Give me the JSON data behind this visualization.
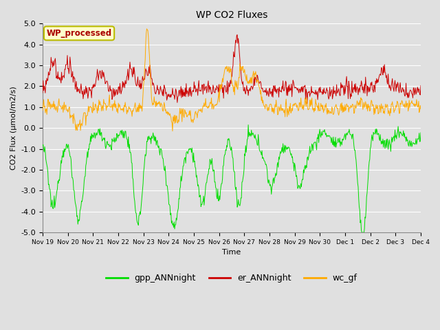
{
  "title": "WP CO2 Fluxes",
  "ylabel": "CO2 Flux (μmol/m2/s)",
  "xlabel": "Time",
  "ylim": [
    -5.0,
    5.0
  ],
  "yticks": [
    -5.0,
    -4.0,
    -3.0,
    -2.0,
    -1.0,
    0.0,
    1.0,
    2.0,
    3.0,
    4.0,
    5.0
  ],
  "bg_color": "#e0e0e0",
  "plot_bg_color": "#e0e0e0",
  "grid_color": "#ffffff",
  "color_gpp": "#00dd00",
  "color_er": "#cc0000",
  "color_wc": "#ffaa00",
  "legend_labels": [
    "gpp_ANNnight",
    "er_ANNnight",
    "wc_gf"
  ],
  "annotation_text": "WP_processed",
  "annotation_color": "#aa0000",
  "annotation_bg": "#ffffcc",
  "annotation_border": "#bbbb00",
  "n_days": 15,
  "points_per_day": 48,
  "tick_labels": [
    "Nov 19",
    "Nov 20",
    "Nov 21",
    "Nov 22",
    "Nov 23",
    "Nov 24",
    "Nov 25",
    "Nov 26",
    "Nov 27",
    "Nov 28",
    "Nov 29",
    "Nov 30",
    "Dec 1",
    "Dec 2",
    "Dec 3",
    "Dec 4"
  ]
}
